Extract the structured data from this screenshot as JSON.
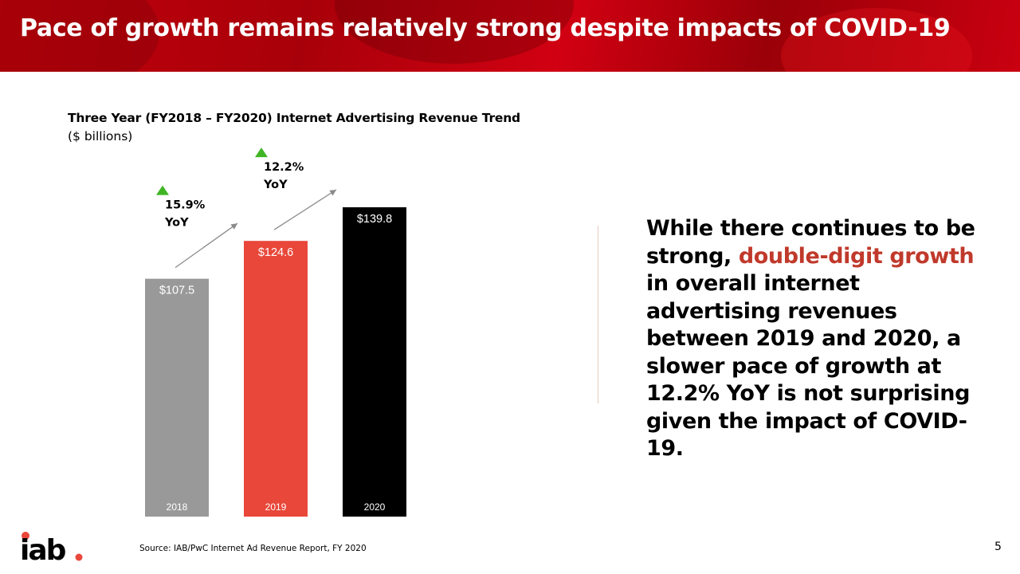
{
  "header": {
    "title": "Pace of growth remains relatively strong despite impacts of COVID-19",
    "background_color": "#c3000c"
  },
  "chart_title": "Three Year (FY2018 – FY2020) Internet Advertising Revenue Trend",
  "chart_units": "($ billions)",
  "chart_data": {
    "type": "bar",
    "title": "Three Year (FY2018 – FY2020) Internet Advertising Revenue Trend",
    "subtitle": "($ billions)",
    "categories": [
      "2018",
      "2019",
      "2020"
    ],
    "values": [
      107.5,
      124.6,
      139.8
    ],
    "value_labels": [
      "$107.5",
      "$124.6",
      "$139.8"
    ],
    "bar_colors": [
      "#999999",
      "#e8473a",
      "#000000"
    ],
    "ylim": [
      0,
      139.8
    ],
    "grid": false,
    "legend": "none",
    "annotations": [
      {
        "line1": "15.9%",
        "line2": "YoY",
        "between": [
          "2018",
          "2019"
        ],
        "marker_color": "#3fb524"
      },
      {
        "line1": "12.2%",
        "line2": "YoY",
        "between": [
          "2019",
          "2020"
        ],
        "marker_color": "#3fb524"
      }
    ]
  },
  "commentary": {
    "part1": "While there continues to be strong, ",
    "highlight": "double-digit growth",
    "part2": " in overall internet advertising revenues between 2019 and 2020, a slower pace of growth at 12.2% YoY is not surprising given the impact of COVID-19.",
    "highlight_color": "#c0392b"
  },
  "footer": {
    "logo_text": "iab",
    "source": "Source: IAB/PwC Internet Ad Revenue Report, FY 2020",
    "page_number": "5"
  }
}
